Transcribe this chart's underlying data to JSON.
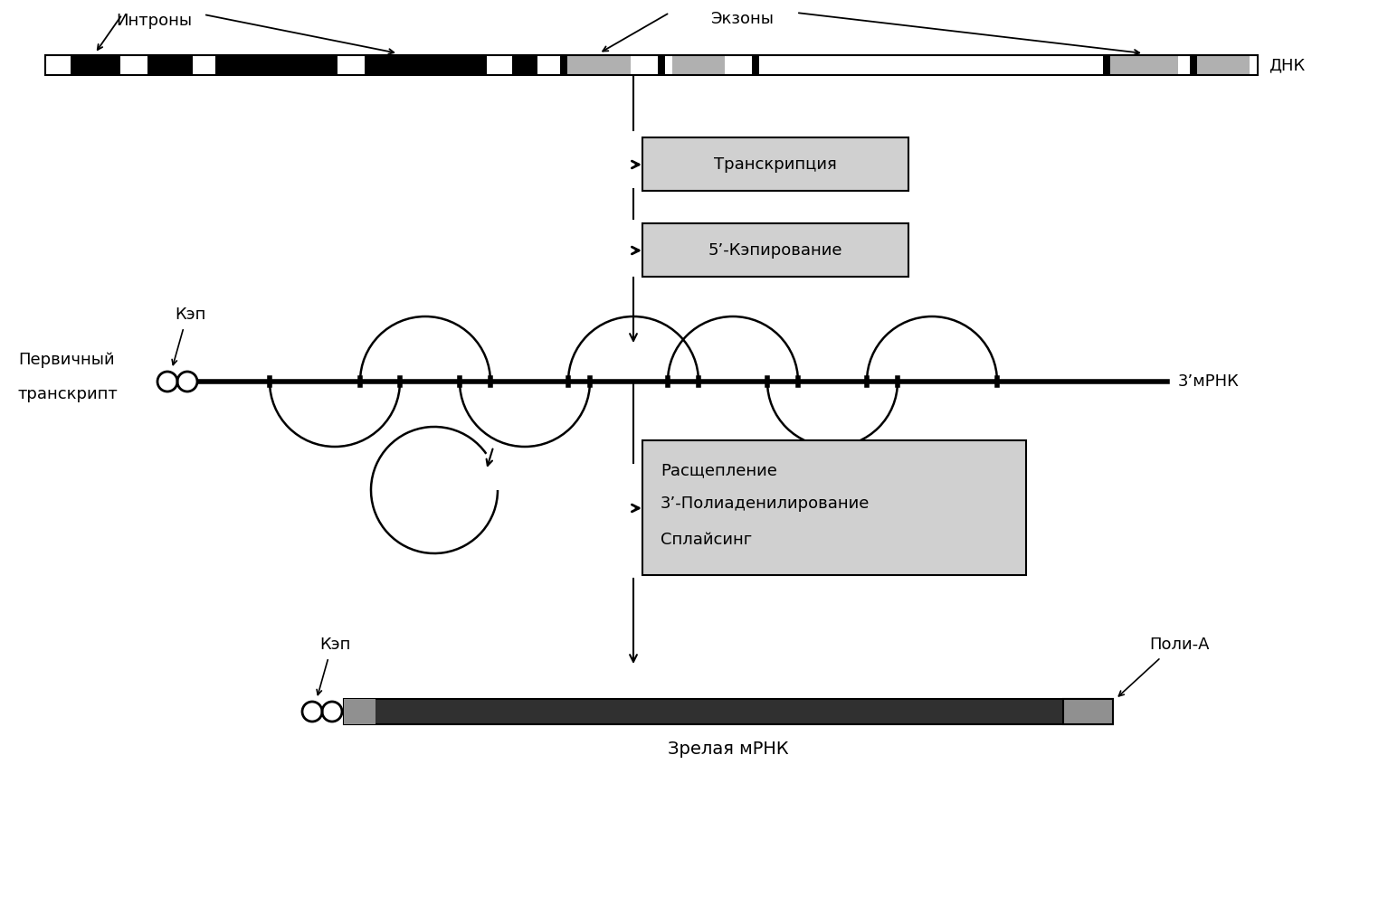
{
  "bg_color": "#ffffff",
  "title_introns": "Интроны",
  "title_exons": "Экзоны",
  "label_dnk": "ДНК",
  "label_transcription": "Транскрипция",
  "label_cap5": "5’-Кэпирование",
  "label_kep": "Кэп",
  "label_primary_1": "Первичный",
  "label_primary_2": "транскрипт",
  "label_3mrna": "3’мРНК",
  "label_box3_line1": "Расщепление",
  "label_box3_line2": "3’-Полиаденилирование",
  "label_box3_line3": "Сплайсинг",
  "label_kep2": "Кэп",
  "label_polyA": "Поли-А",
  "label_mature": "Зрелая мРНК"
}
